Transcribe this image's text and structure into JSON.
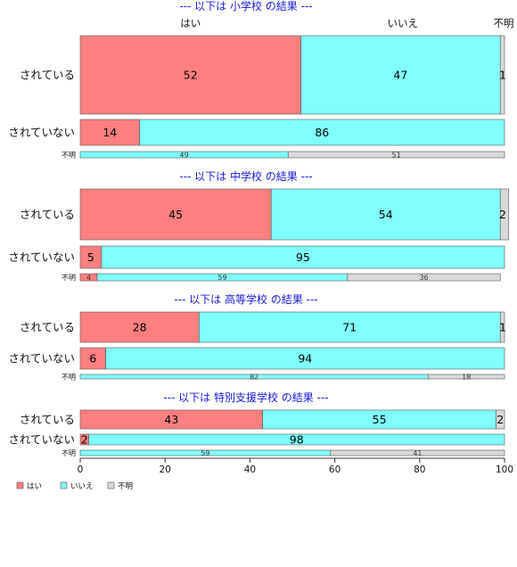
{
  "chart_data": {
    "type": "bar",
    "orientation": "horizontal",
    "stacked": true,
    "xlim": [
      0,
      100
    ],
    "xticks": [
      0,
      20,
      40,
      60,
      80,
      100
    ],
    "colors": {
      "はい": "#ff7f7f",
      "いいえ": "#7fffff",
      "不明": "#d9d9d9"
    },
    "column_headers": [
      "はい",
      "いいえ",
      "不明"
    ],
    "legend": {
      "placement": "bottom-left",
      "entries": [
        "はい",
        "いいえ",
        "不明"
      ]
    },
    "panels": [
      {
        "title": "--- 以下は 小学校 の結果 ---",
        "rows": [
          {
            "label": "されている",
            "values": [
              52,
              47,
              1
            ]
          },
          {
            "label": "されていない",
            "values": [
              14,
              86,
              0
            ]
          },
          {
            "label": "不明",
            "values": [
              0,
              49,
              51
            ]
          }
        ]
      },
      {
        "title": "--- 以下は 中学校 の結果 ---",
        "rows": [
          {
            "label": "されている",
            "values": [
              45,
              54,
              2
            ]
          },
          {
            "label": "されていない",
            "values": [
              5,
              95,
              0
            ]
          },
          {
            "label": "不明",
            "values": [
              4,
              59,
              36
            ]
          }
        ]
      },
      {
        "title": "--- 以下は 高等学校 の結果 ---",
        "rows": [
          {
            "label": "されている",
            "values": [
              28,
              71,
              1
            ]
          },
          {
            "label": "されていない",
            "values": [
              6,
              94,
              0
            ]
          },
          {
            "label": "不明",
            "values": [
              0,
              82,
              18
            ]
          }
        ]
      },
      {
        "title": "--- 以下は 特別支援学校 の結果 ---",
        "rows": [
          {
            "label": "されている",
            "values": [
              43,
              55,
              2
            ]
          },
          {
            "label": "されていない",
            "values": [
              2,
              98,
              0
            ]
          },
          {
            "label": "不明",
            "values": [
              0,
              59,
              41
            ]
          }
        ]
      }
    ]
  }
}
